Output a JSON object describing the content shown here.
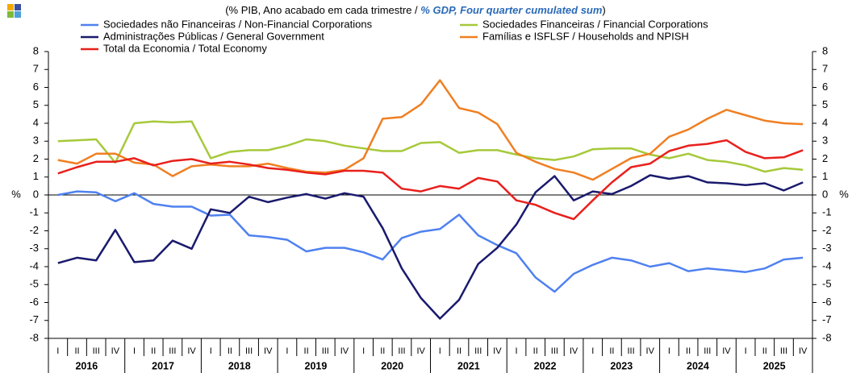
{
  "chart_data": {
    "type": "line",
    "title": [
      "(% PIB, Ano acabado em cada trimestre / ",
      "% GDP, Four quarter cumulated sum",
      ")"
    ],
    "ylabel": "%",
    "y2label": "%",
    "categories": [
      "I",
      "II",
      "III",
      "IV",
      "I",
      "II",
      "III",
      "IV",
      "I",
      "II",
      "III",
      "IV",
      "I",
      "II",
      "III",
      "IV",
      "I",
      "II",
      "III",
      "IV",
      "I",
      "II",
      "III",
      "IV",
      "I",
      "II",
      "III",
      "IV",
      "I",
      "II",
      "III",
      "IV",
      "I",
      "II",
      "III",
      "IV",
      "I",
      "II",
      "III",
      "IV"
    ],
    "years": [
      "2016",
      "2017",
      "2018",
      "2019",
      "2020",
      "2021",
      "2022",
      "2023",
      "2024",
      "2025"
    ],
    "ylim": [
      -8,
      8
    ],
    "yticks": [
      -8,
      -7,
      -6,
      -5,
      -4,
      -3,
      -2,
      -1,
      0,
      1,
      2,
      3,
      4,
      5,
      6,
      7,
      8
    ],
    "y2lim": [
      -8,
      8
    ],
    "y2ticks": [
      -8,
      -7,
      -6,
      -5,
      -4,
      -3,
      -2,
      -1,
      0,
      1,
      2,
      3,
      4,
      5,
      6,
      7,
      8
    ],
    "series": [
      {
        "name": "Sociedades não Financeiras / Non-Financial Corporations",
        "color": "#4f81f0",
        "values": [
          0.0,
          0.2,
          0.15,
          -0.35,
          0.1,
          -0.5,
          -0.65,
          -0.65,
          -1.15,
          -1.1,
          -2.25,
          -2.35,
          -2.5,
          -3.15,
          -2.95,
          -2.95,
          -3.2,
          -3.6,
          -2.4,
          -2.05,
          -1.9,
          -1.1,
          -2.25,
          -2.8,
          -3.25,
          -4.6,
          -5.4,
          -4.4,
          -3.9,
          -3.5,
          -3.65,
          -4.0,
          -3.8,
          -4.25,
          -4.1,
          -4.2,
          -4.3,
          -4.1,
          -3.6,
          -3.5
        ]
      },
      {
        "name": "Sociedades Financeiras / Financial Corporations",
        "color": "#a6c93a",
        "values": [
          3.0,
          3.05,
          3.1,
          1.8,
          4.0,
          4.1,
          4.05,
          4.1,
          2.05,
          2.4,
          2.5,
          2.5,
          2.75,
          3.1,
          3.0,
          2.75,
          2.6,
          2.45,
          2.45,
          2.9,
          2.95,
          2.35,
          2.5,
          2.5,
          2.25,
          2.05,
          1.95,
          2.15,
          2.55,
          2.6,
          2.6,
          2.25,
          2.05,
          2.3,
          1.95,
          1.85,
          1.65,
          1.3,
          1.5,
          1.4
        ]
      },
      {
        "name": "Administrações Públicas / General Government",
        "color": "#1a1a6e",
        "values": [
          -3.8,
          -3.5,
          -3.65,
          -1.95,
          -3.75,
          -3.65,
          -2.55,
          -3.0,
          -0.8,
          -1.0,
          -0.1,
          -0.4,
          -0.15,
          0.05,
          -0.2,
          0.1,
          -0.1,
          -1.85,
          -4.1,
          -5.75,
          -6.9,
          -5.85,
          -3.85,
          -2.95,
          -1.65,
          0.15,
          1.05,
          -0.3,
          0.2,
          0.05,
          0.5,
          1.1,
          0.9,
          1.05,
          0.7,
          0.65,
          0.55,
          0.65,
          0.25,
          0.7
        ]
      },
      {
        "name": "Famílias e ISFLSF / Households and NPISH",
        "color": "#f07f22",
        "values": [
          1.95,
          1.75,
          2.3,
          2.3,
          1.8,
          1.7,
          1.05,
          1.6,
          1.7,
          1.6,
          1.6,
          1.75,
          1.5,
          1.3,
          1.25,
          1.4,
          2.05,
          4.25,
          4.35,
          5.05,
          6.4,
          4.85,
          4.6,
          3.95,
          2.35,
          1.85,
          1.45,
          1.25,
          0.85,
          1.45,
          2.05,
          2.3,
          3.25,
          3.65,
          4.25,
          4.75,
          4.45,
          4.15,
          4.0,
          3.95
        ]
      },
      {
        "name": "Total da Economia / Total Economy",
        "color": "#e8201c",
        "values": [
          1.2,
          1.55,
          1.85,
          1.85,
          2.05,
          1.65,
          1.9,
          2.0,
          1.75,
          1.85,
          1.7,
          1.5,
          1.4,
          1.25,
          1.15,
          1.35,
          1.35,
          1.25,
          0.35,
          0.2,
          0.5,
          0.35,
          0.95,
          0.75,
          -0.3,
          -0.55,
          -1.0,
          -1.35,
          -0.3,
          0.7,
          1.55,
          1.75,
          2.45,
          2.75,
          2.85,
          3.05,
          2.4,
          2.05,
          2.1,
          2.5
        ]
      }
    ]
  }
}
